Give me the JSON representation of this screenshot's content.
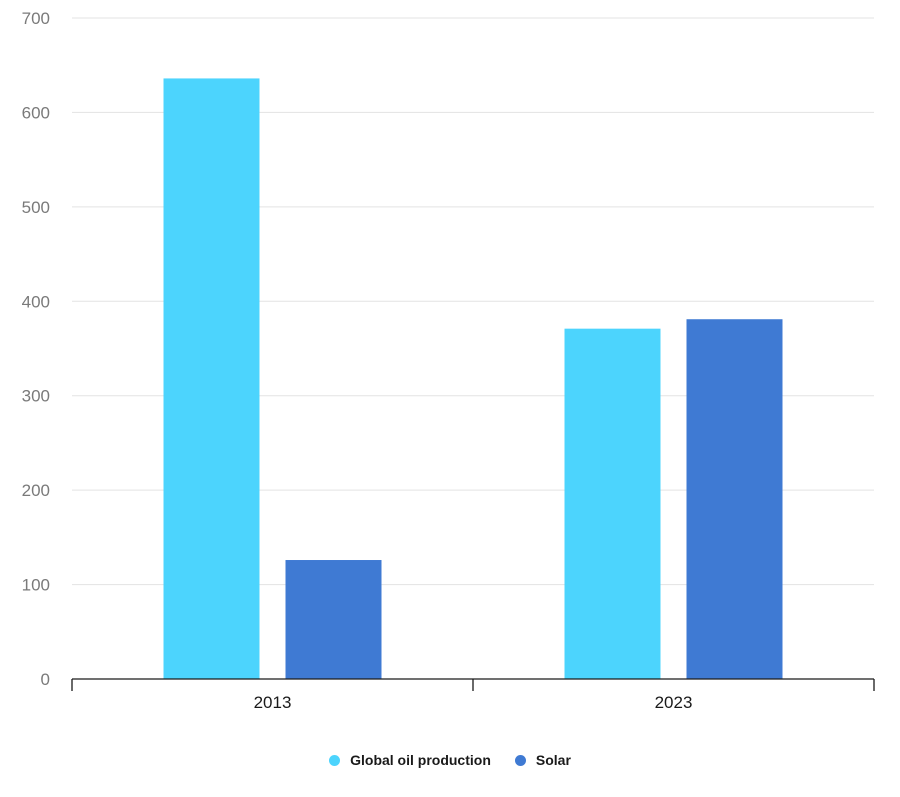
{
  "chart_data": {
    "type": "bar",
    "title": "",
    "xlabel": "",
    "ylabel": "",
    "categories": [
      "2013",
      "2023"
    ],
    "series": [
      {
        "name": "Global oil production",
        "values": [
          636,
          371
        ],
        "color": "#4cd4fd"
      },
      {
        "name": "Solar",
        "values": [
          126,
          381
        ],
        "color": "#3f7ad3"
      }
    ],
    "ylim": [
      0,
      700
    ],
    "yticks": [
      "0",
      "100",
      "200",
      "300",
      "400",
      "500",
      "600",
      "700"
    ],
    "grid": true,
    "legend_position": "bottom-center"
  }
}
